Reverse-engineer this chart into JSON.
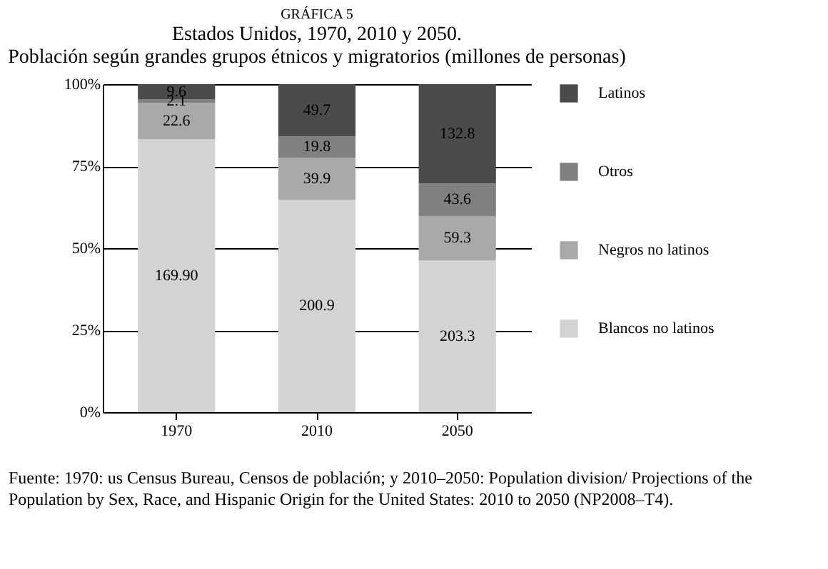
{
  "chart_data": {
    "type": "bar",
    "stacked": true,
    "title": "GRÁFICA 5",
    "subtitle": "Estados Unidos, 1970, 2010 y 2050.\nPoblación según grandes grupos étnicos y migratorios (millones de personas)",
    "categories": [
      "1970",
      "2010",
      "2050"
    ],
    "series": [
      {
        "name": "Blancos no latinos",
        "color": "#d3d3d3",
        "values": [
          83.2,
          64.7,
          46.3
        ]
      },
      {
        "name": "Negros no latinos",
        "color": "#a9a9a9",
        "values": [
          11.1,
          12.9,
          13.5
        ]
      },
      {
        "name": "Otros",
        "color": "#808080",
        "values": [
          1.0,
          6.4,
          9.9
        ]
      },
      {
        "name": "Latinos",
        "color": "#4b4b4b",
        "values": [
          4.7,
          16.0,
          30.3
        ]
      }
    ],
    "ylim": [
      0,
      100
    ],
    "yticks": [
      {
        "value": 0,
        "label": "0%"
      },
      {
        "value": 25,
        "label": "25%"
      },
      {
        "value": 50,
        "label": "50%"
      },
      {
        "value": 75,
        "label": "75%"
      },
      {
        "value": 100,
        "label": "100%"
      }
    ],
    "grid": "y",
    "legend": "right",
    "annotations": [
      "169.90",
      "22.6",
      "2.1",
      "9.6",
      "200.9",
      "39.9",
      "19.8",
      "49.7",
      "203.3",
      "59.3",
      "43.6",
      "132.8",
      "Fuente: 1970: us Census Bureau, Censos de población; y 2010–2050: Population division/ Projections of the Population by Sex, Race, and Hispanic Origin for the United States: 2010 to 2050 (NP2008–T4)."
    ]
  }
}
